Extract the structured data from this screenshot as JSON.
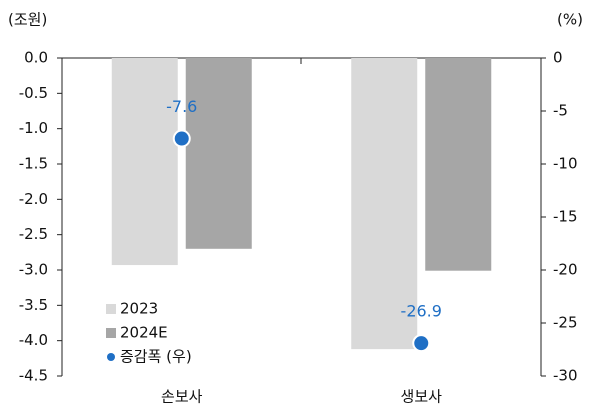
{
  "chart_data": {
    "type": "bar",
    "y_label": "(조원)",
    "y2_label": "(%)",
    "categories": [
      "손보사",
      "생보사"
    ],
    "series": [
      {
        "name": "2023",
        "color": "#d9d9d9",
        "values": [
          -2.93,
          -4.12
        ]
      },
      {
        "name": "2024E",
        "color": "#a6a6a6",
        "values": [
          -2.7,
          -3.01
        ]
      },
      {
        "name": "증감폭 (우)",
        "color": "#1f6fc5",
        "type": "scatter",
        "axis": "y2",
        "values": [
          -7.6,
          -26.9
        ]
      }
    ],
    "ylim": [
      -4.5,
      0
    ],
    "yticks": [
      {
        "value": 0,
        "label": "0.0"
      },
      -0.5,
      {
        "value": -1,
        "label": "-1.0"
      },
      -1.5,
      {
        "value": -2,
        "label": "-2.0"
      },
      -2.5,
      {
        "value": -3,
        "label": "-3.0"
      },
      -3.5,
      {
        "value": -4,
        "label": "-4.0"
      },
      -4.5
    ],
    "y2lim": [
      -30,
      0
    ],
    "y2ticks": [
      0,
      -5,
      -10,
      -15,
      -20,
      -25,
      -30
    ],
    "legend": "lower left",
    "grid": false
  }
}
